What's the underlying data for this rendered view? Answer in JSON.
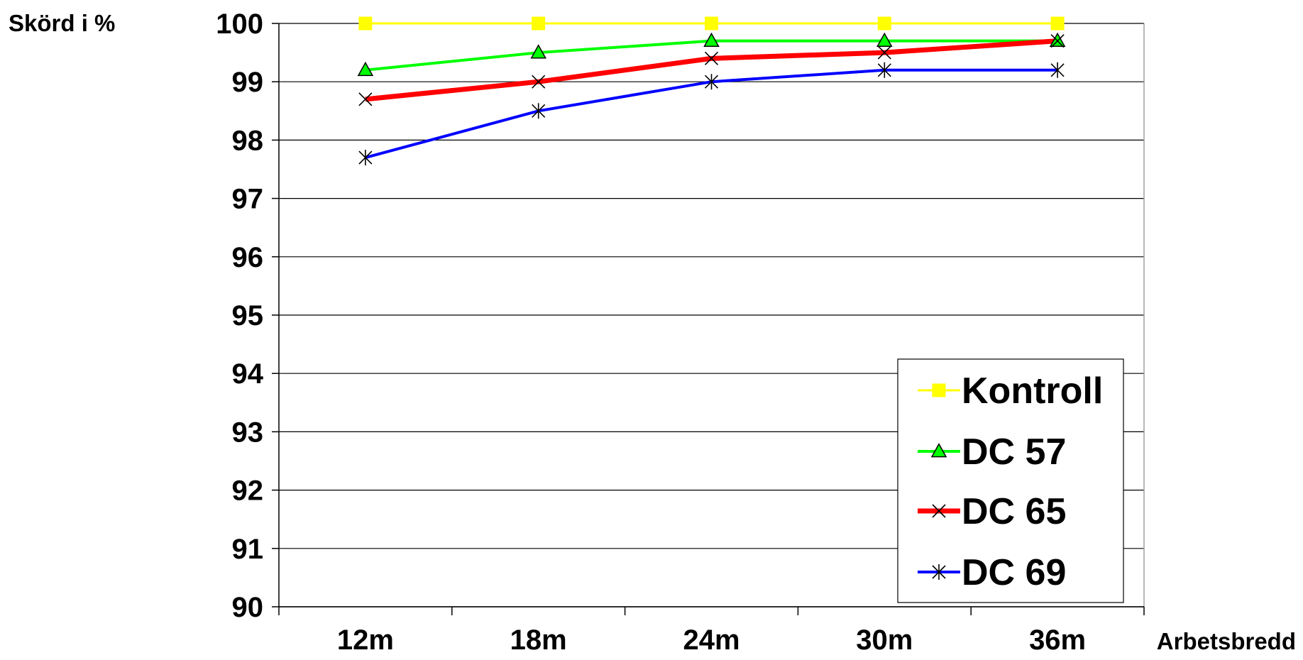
{
  "chart_data": {
    "type": "line",
    "ylabel": "Skörd i %",
    "xlabel": "Arbetsbredd",
    "categories": [
      "12m",
      "18m",
      "24m",
      "30m",
      "36m"
    ],
    "ylim": [
      90,
      100
    ],
    "yticks": [
      90,
      91,
      92,
      93,
      94,
      95,
      96,
      97,
      98,
      99,
      100
    ],
    "grid": true,
    "legend_position": "bottom-right",
    "series": [
      {
        "name": "Kontroll",
        "values": [
          100,
          100,
          100,
          100,
          100
        ],
        "color": "#FFFF00",
        "marker": "square",
        "marker_color": "#FFFF00"
      },
      {
        "name": "DC 57",
        "values": [
          99.2,
          99.5,
          99.7,
          99.7,
          99.7
        ],
        "color": "#00FF00",
        "marker": "triangle",
        "marker_color": "#00FF00"
      },
      {
        "name": "DC 65",
        "values": [
          98.7,
          99.0,
          99.4,
          99.5,
          99.7
        ],
        "color": "#FF0000",
        "marker": "x",
        "marker_color": "#000000"
      },
      {
        "name": "DC 69",
        "values": [
          97.7,
          98.5,
          99.0,
          99.2,
          99.2
        ],
        "color": "#0000FF",
        "marker": "asterisk",
        "marker_color": "#000000"
      }
    ]
  }
}
